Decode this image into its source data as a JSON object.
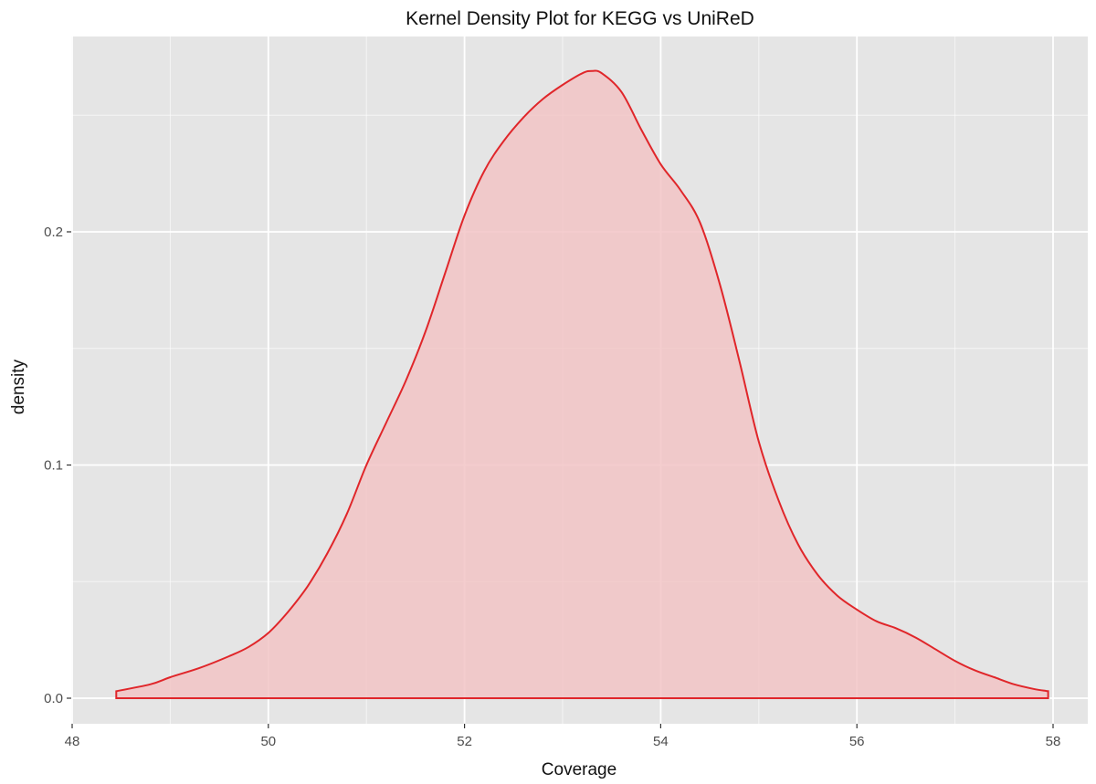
{
  "chart_data": {
    "type": "area",
    "title": "Kernel Density Plot for KEGG vs UniReD",
    "xlabel": "Coverage",
    "ylabel": "density",
    "xlim": [
      48,
      58
    ],
    "ylim": [
      -0.01,
      0.268
    ],
    "x_ticks": [
      48,
      50,
      52,
      54,
      56,
      58
    ],
    "x_tick_labels": [
      "48",
      "50",
      "52",
      "54",
      "56",
      "58"
    ],
    "y_ticks": [
      0.0,
      0.1,
      0.2
    ],
    "y_tick_labels": [
      "0.0",
      "0.1",
      "0.2"
    ],
    "grid": true,
    "legend": "none",
    "colors": {
      "line": "#e0262a",
      "fill": "#f2c4c6",
      "panel": "#e5e5e5",
      "grid": "#ffffff",
      "text": "#111111",
      "axis_text": "#4d4d4d"
    },
    "series": [
      {
        "x": [
          48.45,
          48.8,
          49.0,
          49.3,
          49.6,
          49.8,
          50.0,
          50.2,
          50.4,
          50.6,
          50.8,
          51.0,
          51.2,
          51.4,
          51.6,
          51.8,
          52.0,
          52.2,
          52.4,
          52.6,
          52.8,
          53.0,
          53.2,
          53.3,
          53.4,
          53.6,
          53.8,
          54.0,
          54.2,
          54.4,
          54.6,
          54.8,
          55.0,
          55.2,
          55.4,
          55.6,
          55.8,
          56.0,
          56.2,
          56.4,
          56.6,
          56.8,
          57.0,
          57.2,
          57.4,
          57.6,
          57.8,
          57.95
        ],
        "y": [
          0.003,
          0.006,
          0.009,
          0.013,
          0.018,
          0.022,
          0.028,
          0.037,
          0.048,
          0.062,
          0.079,
          0.1,
          0.118,
          0.136,
          0.157,
          0.182,
          0.207,
          0.226,
          0.239,
          0.249,
          0.257,
          0.263,
          0.268,
          0.269,
          0.268,
          0.26,
          0.244,
          0.229,
          0.218,
          0.204,
          0.178,
          0.145,
          0.11,
          0.085,
          0.066,
          0.053,
          0.044,
          0.038,
          0.033,
          0.03,
          0.026,
          0.021,
          0.016,
          0.012,
          0.009,
          0.006,
          0.004,
          0.003
        ]
      }
    ]
  }
}
